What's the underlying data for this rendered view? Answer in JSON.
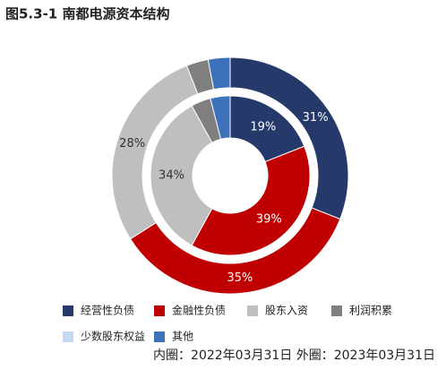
{
  "chart_data": {
    "type": "donut",
    "title": "图5.3-1 南都电源资本结构",
    "categories": [
      "经营性负债",
      "金融性负债",
      "股东入资",
      "利润积累",
      "少数股东权益",
      "其他"
    ],
    "colors": [
      "#253a6a",
      "#c00000",
      "#bfbfbf",
      "#7f7f7f",
      "#c5d9f1",
      "#3d72bb"
    ],
    "series": [
      {
        "values": [
          19,
          39,
          34,
          4,
          0,
          4
        ],
        "value_labels": [
          "19%",
          "39%",
          "34%",
          null,
          null,
          null
        ]
      },
      {
        "values": [
          31,
          35,
          28,
          3,
          0,
          3
        ],
        "value_labels": [
          "31%",
          "35%",
          "28%",
          null,
          null,
          null
        ]
      }
    ],
    "note": "内圈：2022年03月31日 外圈：2023年03月31日"
  }
}
